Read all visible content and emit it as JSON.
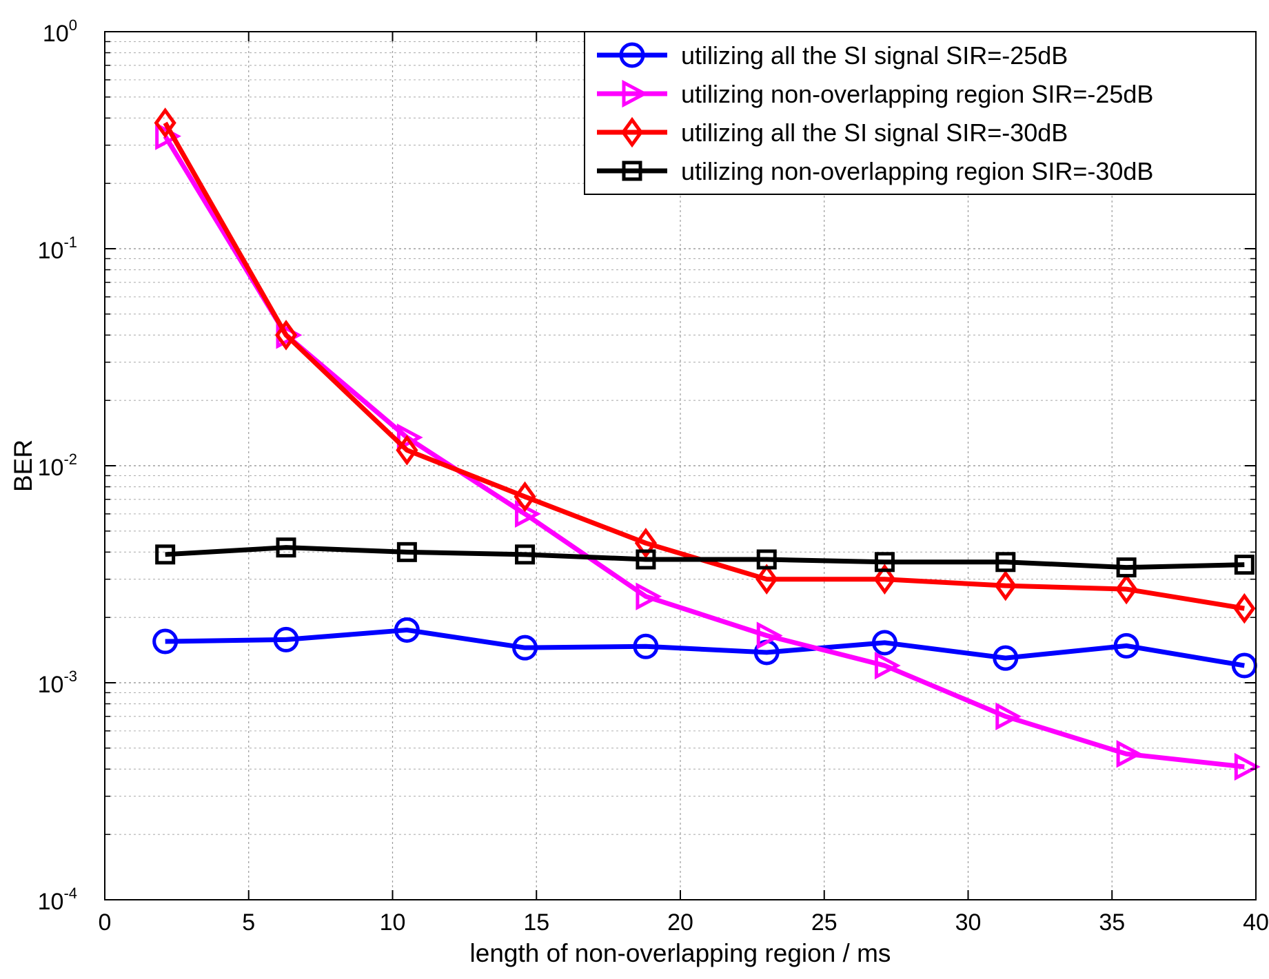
{
  "chart_data": {
    "type": "line",
    "title": "",
    "xlabel": "length of non-overlapping region / ms",
    "ylabel": "BER",
    "xlim": [
      0,
      40
    ],
    "ylim": [
      0.0001,
      1
    ],
    "yscale": "log",
    "grid": true,
    "legend_position": "top-right",
    "x_ticks": [
      0,
      5,
      10,
      15,
      20,
      25,
      30,
      35,
      40
    ],
    "x_tick_labels": [
      "0",
      "5",
      "10",
      "15",
      "20",
      "25",
      "30",
      "35",
      "40"
    ],
    "y_ticks": [
      {
        "value": 1,
        "base": "10",
        "exp": "0"
      },
      {
        "value": 0.1,
        "base": "10",
        "exp": "-1"
      },
      {
        "value": 0.01,
        "base": "10",
        "exp": "-2"
      },
      {
        "value": 0.001,
        "base": "10",
        "exp": "-3"
      },
      {
        "value": 0.0001,
        "base": "10",
        "exp": "-4"
      }
    ],
    "x": [
      2.1,
      6.3,
      10.5,
      14.6,
      18.8,
      23.0,
      27.1,
      31.3,
      35.5,
      39.6
    ],
    "series": [
      {
        "name": "utilizing all the SI signal SIR=-25dB",
        "color": "#0000ff",
        "marker": "circle",
        "values": [
          0.00155,
          0.00158,
          0.00175,
          0.00145,
          0.00147,
          0.00138,
          0.00153,
          0.0013,
          0.00148,
          0.0012
        ]
      },
      {
        "name": "utilizing non-overlapping region SIR=-25dB",
        "color": "#ff00ff",
        "marker": "triangle-right",
        "values": [
          0.33,
          0.04,
          0.0135,
          0.006,
          0.0025,
          0.00165,
          0.0012,
          0.0007,
          0.00047,
          0.00041
        ]
      },
      {
        "name": "utilizing all the SI signal SIR=-30dB",
        "color": "#ff0000",
        "marker": "diamond",
        "values": [
          0.38,
          0.04,
          0.0118,
          0.0072,
          0.0044,
          0.003,
          0.003,
          0.0028,
          0.0027,
          0.0022
        ]
      },
      {
        "name": "utilizing non-overlapping region SIR=-30dB",
        "color": "#000000",
        "marker": "square",
        "values": [
          0.0039,
          0.0042,
          0.004,
          0.0039,
          0.0037,
          0.0037,
          0.0036,
          0.0036,
          0.0034,
          0.0035
        ]
      }
    ]
  }
}
